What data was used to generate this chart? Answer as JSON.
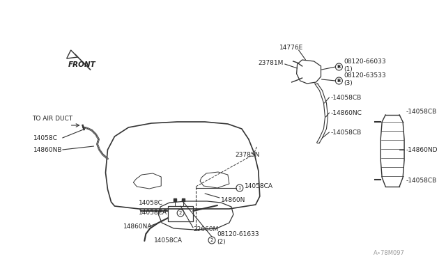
{
  "bg_color": "#ffffff",
  "line_color": "#333333",
  "text_color": "#222222",
  "fig_width": 6.4,
  "fig_height": 3.72,
  "watermark": "A∘78M097",
  "labels": {
    "front_arrow": "FRONT",
    "to_air_duct": "TO AIR DUCT",
    "14776E": "14776E",
    "23781M": "23781M",
    "08120_66033": "08120-66033\n(1)",
    "08120_63533": "08120-63533\n(3)",
    "14058CB_top": "-14058CB",
    "14860NC": "-14860NC",
    "14058CB_mid": "-14058CB",
    "23785N": "23785N",
    "14058CA_mid": "14058CA",
    "14860N": "14860N",
    "14058C_left": "14058C",
    "14860NB": "14860NB",
    "14058C_low": "14058C",
    "14058CA_low1": "14058CA",
    "14860NA": "14860NA",
    "14058CA_low2": "14058CA",
    "22660M": "22660M",
    "08120_61633": "08120-61633\n(2)",
    "14058CB_right1": "-14058CB",
    "14860ND": "-14860ND",
    "14058CB_right2": "-14058CB"
  }
}
